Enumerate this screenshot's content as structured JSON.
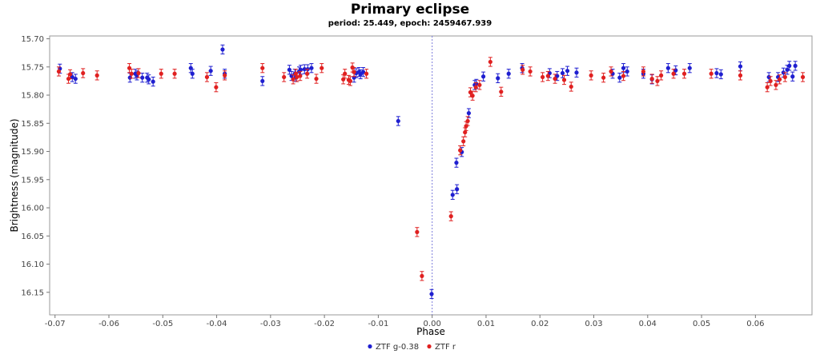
{
  "chart_data": {
    "type": "scatter",
    "title": "Primary eclipse",
    "subtitle": "period: 25.449, epoch: 2459467.939",
    "xlabel": "Phase",
    "ylabel": "Brightness (magnitude)",
    "xlim": [
      -0.071,
      0.0705
    ],
    "ylim": [
      16.19,
      15.695
    ],
    "y_inverted": true,
    "x_ticks": [
      -0.07,
      -0.06,
      -0.05,
      -0.04,
      -0.03,
      -0.02,
      -0.01,
      0.0,
      0.01,
      0.02,
      0.03,
      0.04,
      0.05,
      0.06
    ],
    "x_tick_labels": [
      "-0.07",
      "-0.06",
      "-0.05",
      "-0.04",
      "-0.03",
      "-0.02",
      "-0.01",
      "0.00",
      "0.01",
      "0.02",
      "0.03",
      "0.04",
      "0.05",
      "0.06"
    ],
    "y_ticks": [
      15.7,
      15.75,
      15.8,
      15.85,
      15.9,
      15.95,
      16.0,
      16.05,
      16.1,
      16.15
    ],
    "y_tick_labels": [
      "15.70",
      "15.75",
      "15.80",
      "15.85",
      "15.90",
      "15.95",
      "16.00",
      "16.05",
      "16.10",
      "16.15"
    ],
    "error_bar": 0.008,
    "vline_x": 0.0,
    "grid": false,
    "legend_position": "bottom-center",
    "series": [
      {
        "name": "ZTF g-0.38",
        "color": "#1f1fd0",
        "points": [
          [
            -0.0691,
            15.753
          ],
          [
            -0.0668,
            15.768
          ],
          [
            -0.0662,
            15.771
          ],
          [
            -0.0561,
            15.769
          ],
          [
            -0.0551,
            15.762
          ],
          [
            -0.0548,
            15.765
          ],
          [
            -0.0538,
            15.769
          ],
          [
            -0.0529,
            15.769
          ],
          [
            -0.0526,
            15.772
          ],
          [
            -0.0518,
            15.776
          ],
          [
            -0.0448,
            15.752
          ],
          [
            -0.0445,
            15.762
          ],
          [
            -0.0411,
            15.757
          ],
          [
            -0.0389,
            15.719
          ],
          [
            -0.0385,
            15.762
          ],
          [
            -0.0315,
            15.775
          ],
          [
            -0.0265,
            15.755
          ],
          [
            -0.0261,
            15.766
          ],
          [
            -0.0255,
            15.762
          ],
          [
            -0.0253,
            15.768
          ],
          [
            -0.0247,
            15.758
          ],
          [
            -0.0244,
            15.755
          ],
          [
            -0.0237,
            15.754
          ],
          [
            -0.0231,
            15.754
          ],
          [
            -0.0224,
            15.752
          ],
          [
            -0.0145,
            15.769
          ],
          [
            -0.0141,
            15.761
          ],
          [
            -0.0136,
            15.759
          ],
          [
            -0.0133,
            15.763
          ],
          [
            -0.0128,
            15.759
          ],
          [
            -0.0063,
            15.846
          ],
          [
            -0.0001,
            16.153
          ],
          [
            0.0038,
            15.977
          ],
          [
            0.0046,
            15.967
          ],
          [
            0.0045,
            15.92
          ],
          [
            0.0055,
            15.901
          ],
          [
            0.0068,
            15.832
          ],
          [
            0.0079,
            15.782
          ],
          [
            0.0082,
            15.78
          ],
          [
            0.0095,
            15.767
          ],
          [
            0.0122,
            15.77
          ],
          [
            0.0142,
            15.762
          ],
          [
            0.0167,
            15.752
          ],
          [
            0.0218,
            15.761
          ],
          [
            0.0232,
            15.766
          ],
          [
            0.0242,
            15.761
          ],
          [
            0.0251,
            15.757
          ],
          [
            0.0268,
            15.76
          ],
          [
            0.0335,
            15.762
          ],
          [
            0.0348,
            15.769
          ],
          [
            0.0355,
            15.752
          ],
          [
            0.0362,
            15.758
          ],
          [
            0.0392,
            15.762
          ],
          [
            0.0408,
            15.772
          ],
          [
            0.0438,
            15.752
          ],
          [
            0.0452,
            15.756
          ],
          [
            0.0478,
            15.752
          ],
          [
            0.0528,
            15.761
          ],
          [
            0.0536,
            15.763
          ],
          [
            0.0572,
            15.749
          ],
          [
            0.0625,
            15.768
          ],
          [
            0.0642,
            15.768
          ],
          [
            0.0652,
            15.76
          ],
          [
            0.0659,
            15.755
          ],
          [
            0.0663,
            15.748
          ],
          [
            0.0669,
            15.767
          ],
          [
            0.0674,
            15.748
          ]
        ]
      },
      {
        "name": "ZTF r",
        "color": "#e02020",
        "points": [
          [
            -0.0693,
            15.758
          ],
          [
            -0.0675,
            15.771
          ],
          [
            -0.0672,
            15.763
          ],
          [
            -0.0648,
            15.761
          ],
          [
            -0.0622,
            15.765
          ],
          [
            -0.0562,
            15.752
          ],
          [
            -0.0558,
            15.762
          ],
          [
            -0.0545,
            15.761
          ],
          [
            -0.0503,
            15.762
          ],
          [
            -0.0478,
            15.762
          ],
          [
            -0.0418,
            15.768
          ],
          [
            -0.0401,
            15.786
          ],
          [
            -0.0385,
            15.765
          ],
          [
            -0.0315,
            15.752
          ],
          [
            -0.0275,
            15.768
          ],
          [
            -0.0258,
            15.772
          ],
          [
            -0.0253,
            15.762
          ],
          [
            -0.0251,
            15.768
          ],
          [
            -0.0245,
            15.766
          ],
          [
            -0.0232,
            15.762
          ],
          [
            -0.0215,
            15.771
          ],
          [
            -0.0205,
            15.752
          ],
          [
            -0.0165,
            15.772
          ],
          [
            -0.0162,
            15.762
          ],
          [
            -0.0155,
            15.773
          ],
          [
            -0.0152,
            15.775
          ],
          [
            -0.0148,
            15.751
          ],
          [
            -0.0145,
            15.759
          ],
          [
            -0.0122,
            15.762
          ],
          [
            -0.0028,
            16.043
          ],
          [
            -0.0019,
            16.121
          ],
          [
            0.0035,
            16.015
          ],
          [
            0.0052,
            15.898
          ],
          [
            0.0058,
            15.882
          ],
          [
            0.0061,
            15.866
          ],
          [
            0.0063,
            15.855
          ],
          [
            0.0066,
            15.846
          ],
          [
            0.0071,
            15.795
          ],
          [
            0.0075,
            15.801
          ],
          [
            0.0081,
            15.786
          ],
          [
            0.0088,
            15.782
          ],
          [
            0.0108,
            15.741
          ],
          [
            0.0128,
            15.794
          ],
          [
            0.0168,
            15.755
          ],
          [
            0.0182,
            15.758
          ],
          [
            0.0205,
            15.768
          ],
          [
            0.0215,
            15.766
          ],
          [
            0.0228,
            15.771
          ],
          [
            0.0245,
            15.773
          ],
          [
            0.0258,
            15.785
          ],
          [
            0.0295,
            15.765
          ],
          [
            0.0318,
            15.769
          ],
          [
            0.0332,
            15.758
          ],
          [
            0.0355,
            15.766
          ],
          [
            0.0392,
            15.758
          ],
          [
            0.0408,
            15.771
          ],
          [
            0.0418,
            15.775
          ],
          [
            0.0425,
            15.765
          ],
          [
            0.0448,
            15.762
          ],
          [
            0.0468,
            15.762
          ],
          [
            0.0518,
            15.762
          ],
          [
            0.0572,
            15.765
          ],
          [
            0.0622,
            15.786
          ],
          [
            0.0628,
            15.775
          ],
          [
            0.0638,
            15.782
          ],
          [
            0.0645,
            15.772
          ],
          [
            0.0655,
            15.768
          ],
          [
            0.0688,
            15.768
          ]
        ]
      }
    ]
  }
}
